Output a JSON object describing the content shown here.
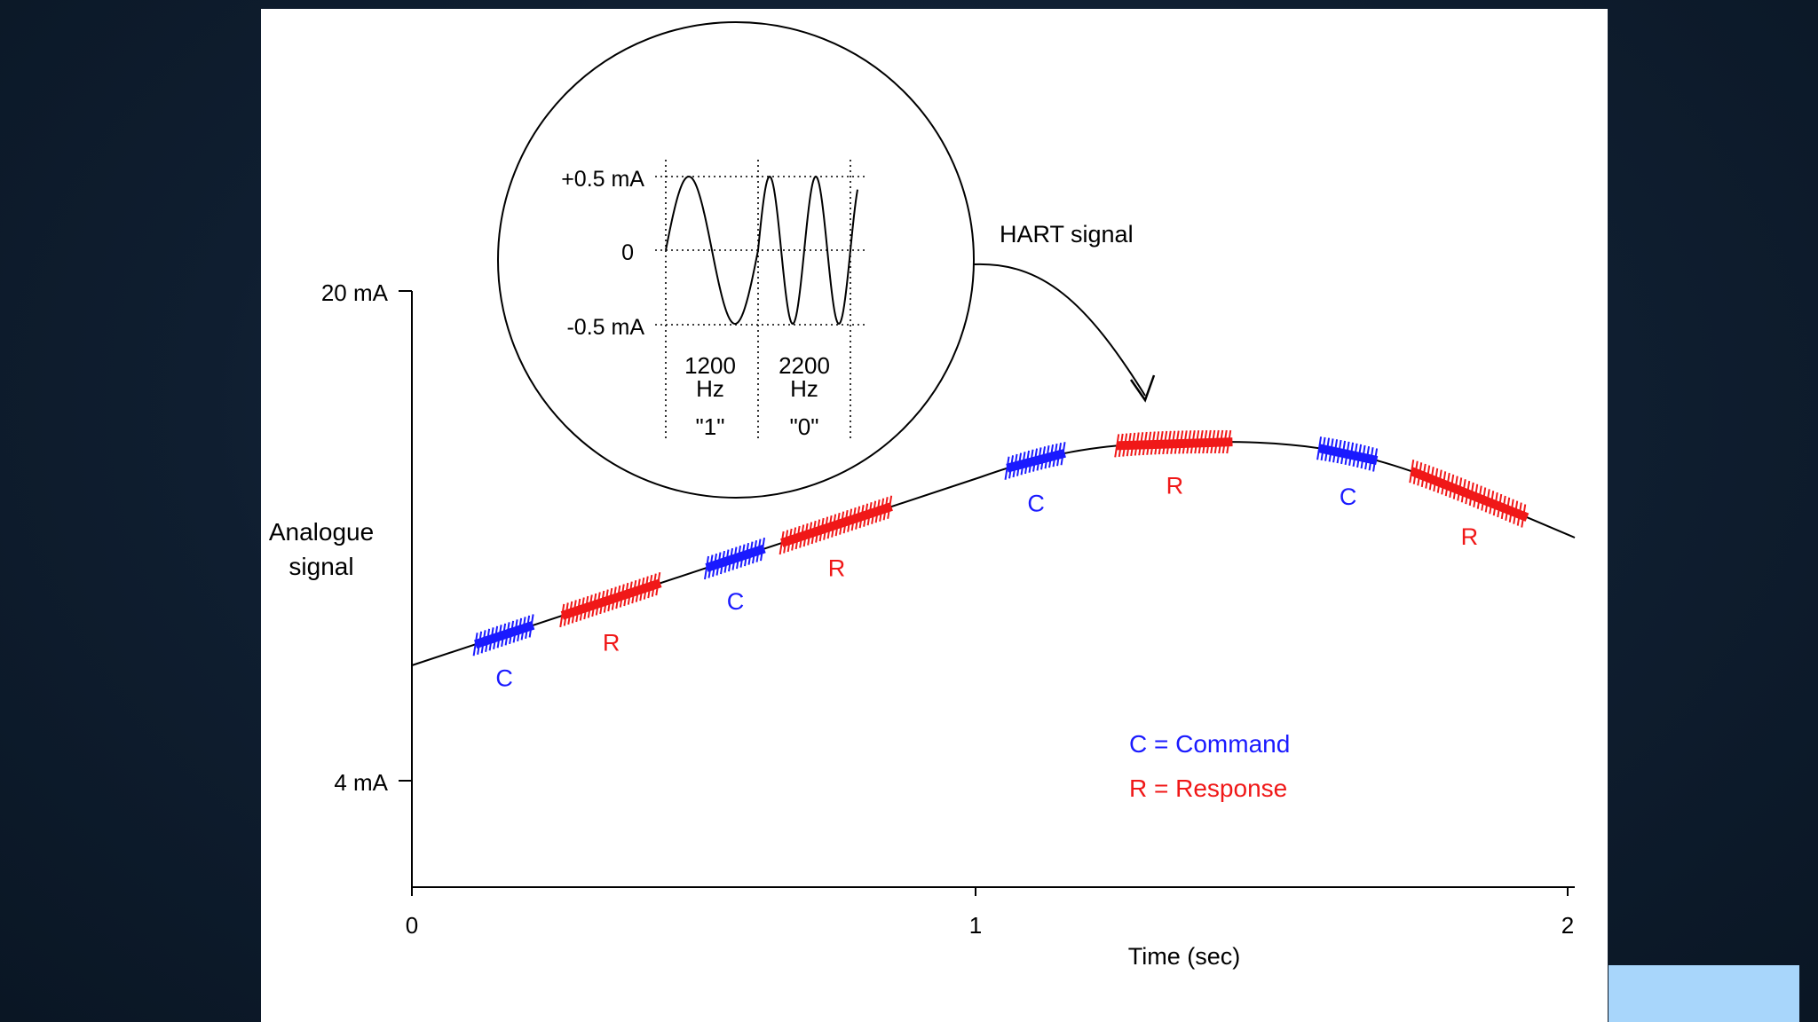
{
  "colors": {
    "command": "#1a1aff",
    "response": "#f01818",
    "axis": "#000000",
    "background": "#ffffff",
    "corner_box": "#a8d6fb"
  },
  "axes": {
    "y_top_label": "20 mA",
    "y_bottom_label": "4 mA",
    "y_title_line1": "Analogue",
    "y_title_line2": "signal",
    "x_ticks": [
      "0",
      "1",
      "2"
    ],
    "x_title": "Time (sec)"
  },
  "inset": {
    "y_labels": [
      "+0.5 mA",
      "0",
      "-0.5 mA"
    ],
    "freq1": "1200",
    "freq1_unit": "Hz",
    "bit1": "\"1\"",
    "freq2": "2200",
    "freq2_unit": "Hz",
    "bit2": "\"0\"",
    "callout": "HART signal"
  },
  "bursts": [
    {
      "type": "command",
      "label": "C",
      "t0": 0.11,
      "t1": 0.21
    },
    {
      "type": "response",
      "label": "R",
      "t0": 0.26,
      "t1": 0.43
    },
    {
      "type": "command",
      "label": "C",
      "t0": 0.51,
      "t1": 0.61
    },
    {
      "type": "response",
      "label": "R",
      "t0": 0.64,
      "t1": 0.83
    },
    {
      "type": "command",
      "label": "C",
      "t0": 1.03,
      "t1": 1.13
    },
    {
      "type": "response",
      "label": "R",
      "t0": 1.22,
      "t1": 1.42
    },
    {
      "type": "command",
      "label": "C",
      "t0": 1.57,
      "t1": 1.67
    },
    {
      "type": "response",
      "label": "R",
      "t0": 1.73,
      "t1": 1.93
    }
  ],
  "legend": {
    "command": "C = Command",
    "response": "R = Response"
  }
}
